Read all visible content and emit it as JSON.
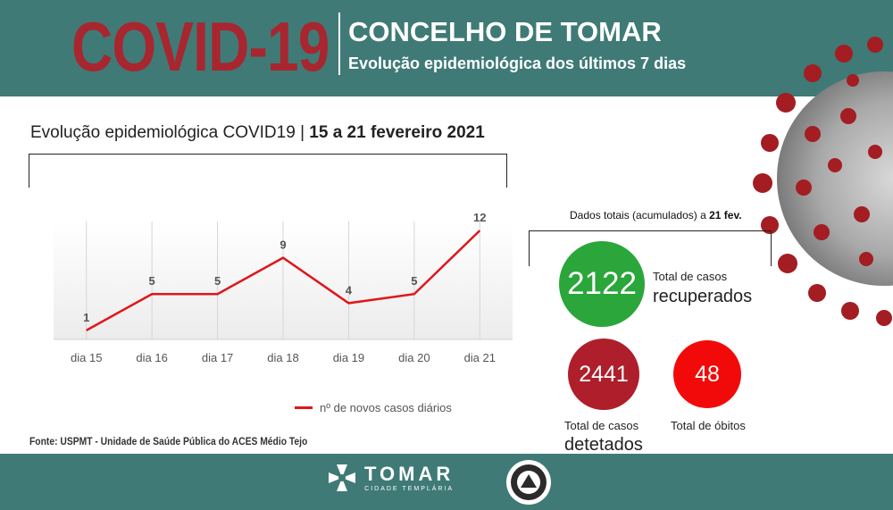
{
  "header": {
    "covid_title": "COVID-19",
    "title": "CONCELHO DE TOMAR",
    "subtitle": "Evolução epidemiológica dos últimos 7 dias"
  },
  "chart_section": {
    "title_prefix": "Evolução epidemiológica COVID19",
    "title_separator": "|",
    "title_range": "15 a 21 fevereiro 2021",
    "source": "Fonte: USPMT - Unidade de Saúde Pública do ACES Médio Tejo"
  },
  "chart_data": {
    "type": "line",
    "categories": [
      "dia 15",
      "dia 16",
      "dia 17",
      "dia 18",
      "dia 19",
      "dia 20",
      "dia 21"
    ],
    "series": [
      {
        "name": "nº de novos casos diários",
        "values": [
          1,
          5,
          5,
          9,
          4,
          5,
          12
        ],
        "color": "#e0161a"
      }
    ],
    "ylim": [
      0,
      13
    ],
    "grid": "vertical",
    "legend_position": "bottom-center",
    "data_labels": true
  },
  "totals": {
    "heading_prefix": "Dados totais (acumulados) a",
    "heading_date": "21 fev.",
    "recovered": {
      "value": "2122",
      "label_line1": "Total de casos",
      "label_line2": "recuperados",
      "color": "#2aa63a"
    },
    "detected": {
      "value": "2441",
      "label_line1": "Total de casos",
      "label_line2": "detetados",
      "color": "#ae1f2b"
    },
    "deaths": {
      "value": "48",
      "label": "Total de óbitos",
      "color": "#f20a0a"
    }
  },
  "footer": {
    "logo_name": "TOMAR",
    "logo_tagline": "CIDADE TEMPLÁRIA",
    "band_color": "#3f7a76"
  }
}
